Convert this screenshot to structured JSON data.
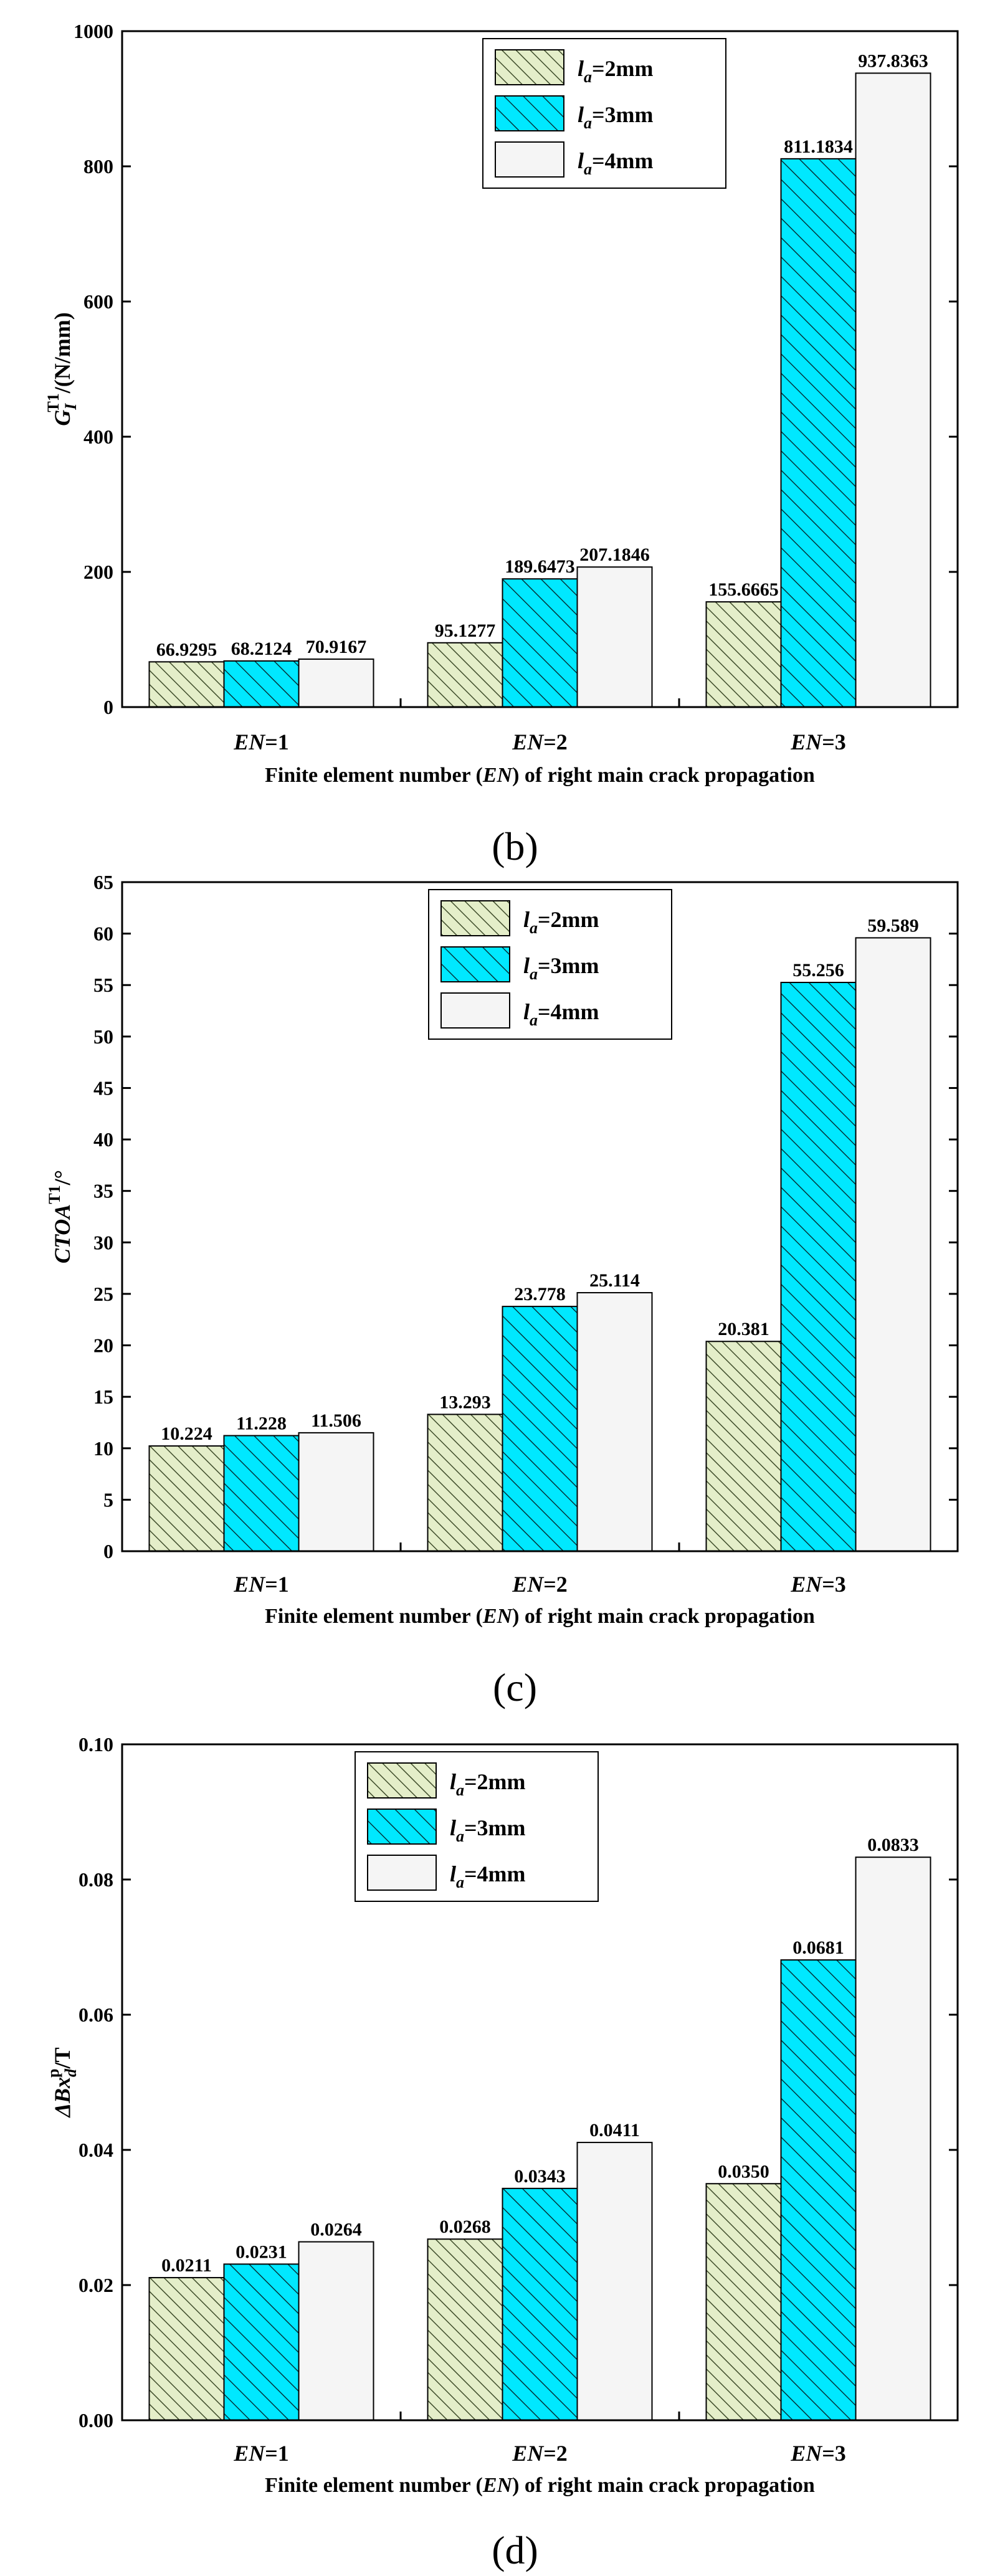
{
  "figure_type": "grouped bar charts",
  "chart_data": [
    {
      "type": "bar",
      "panel_label": "(b)",
      "title": "",
      "ylabel": "G_I^T1/(N/mm)",
      "ylabel_parts": {
        "sym": "G",
        "sub": "I",
        "sup": "T1",
        "rest": "/(N/mm)"
      },
      "xlabel": "Finite element number (EN) of right main crack propagation",
      "xlabel_parts": {
        "pre": "Finite element number (",
        "it": "EN",
        "post": ") of right main crack propagation"
      },
      "categories": [
        "EN=1",
        "EN=2",
        "EN=3"
      ],
      "ylim": [
        0,
        1000
      ],
      "yticks": [
        0,
        200,
        400,
        600,
        800,
        1000
      ],
      "ytick_labels": [
        "0",
        "200",
        "400",
        "600",
        "800",
        "1000"
      ],
      "series": [
        {
          "name": "la=2mm",
          "values": [
            66.9295,
            95.1277,
            155.6665
          ],
          "labels": [
            "66.9295",
            "95.1277",
            "155.6665"
          ]
        },
        {
          "name": "la=3mm",
          "values": [
            68.2124,
            189.6473,
            811.1834
          ],
          "labels": [
            "68.2124",
            "189.6473",
            "811.1834"
          ]
        },
        {
          "name": "la=4mm",
          "values": [
            70.9167,
            207.1846,
            937.8363
          ],
          "labels": [
            "70.9167",
            "207.1846",
            "937.8363"
          ]
        }
      ],
      "legend_position": "top-center"
    },
    {
      "type": "bar",
      "panel_label": "(c)",
      "title": "",
      "ylabel": "CTOA^T1/°",
      "ylabel_parts": {
        "sym": "CTOA",
        "sup": "T1",
        "rest": "/°"
      },
      "xlabel": "Finite element number (EN) of right main crack propagation",
      "xlabel_parts": {
        "pre": "Finite element number (",
        "it": "EN",
        "post": ") of right main crack propagation"
      },
      "categories": [
        "EN=1",
        "EN=2",
        "EN=3"
      ],
      "ylim": [
        0,
        65
      ],
      "yticks": [
        0,
        5,
        10,
        15,
        20,
        25,
        30,
        35,
        40,
        45,
        50,
        55,
        60,
        65
      ],
      "ytick_labels": [
        "0",
        "5",
        "10",
        "15",
        "20",
        "25",
        "30",
        "35",
        "40",
        "45",
        "50",
        "55",
        "60",
        "65"
      ],
      "series": [
        {
          "name": "la=2mm",
          "values": [
            10.224,
            13.293,
            20.381
          ],
          "labels": [
            "10.224",
            "13.293",
            "20.381"
          ]
        },
        {
          "name": "la=3mm",
          "values": [
            11.228,
            23.778,
            55.256
          ],
          "labels": [
            "11.228",
            "23.778",
            "55.256"
          ]
        },
        {
          "name": "la=4mm",
          "values": [
            11.506,
            25.114,
            59.589
          ],
          "labels": [
            "11.506",
            "25.114",
            "59.589"
          ]
        }
      ],
      "legend_position": "top-left"
    },
    {
      "type": "bar",
      "panel_label": "(d)",
      "title": "",
      "ylabel": "ΔBx_d^p/T",
      "ylabel_parts": {
        "sym": "ΔBx",
        "sub": "d",
        "sup": "p",
        "rest": "/T"
      },
      "xlabel": "Finite element number (EN) of right main crack propagation",
      "xlabel_parts": {
        "pre": "Finite element number (",
        "it": "EN",
        "post": ") of right main crack propagation"
      },
      "categories": [
        "EN=1",
        "EN=2",
        "EN=3"
      ],
      "ylim": [
        0,
        0.1
      ],
      "yticks": [
        0,
        0.02,
        0.04,
        0.06,
        0.08,
        0.1
      ],
      "ytick_labels": [
        "0.00",
        "0.02",
        "0.04",
        "0.06",
        "0.08",
        "0.10"
      ],
      "series": [
        {
          "name": "la=2mm",
          "values": [
            0.0211,
            0.0268,
            0.035
          ],
          "labels": [
            "0.0211",
            "0.0268",
            "0.0350"
          ]
        },
        {
          "name": "la=3mm",
          "values": [
            0.0231,
            0.0343,
            0.0681
          ],
          "labels": [
            "0.0231",
            "0.0343",
            "0.0681"
          ]
        },
        {
          "name": "la=4mm",
          "values": [
            0.0264,
            0.0411,
            0.0833
          ],
          "labels": [
            "0.0264",
            "0.0411",
            "0.0833"
          ]
        }
      ],
      "legend_position": "top-left"
    }
  ],
  "legend_entries": [
    {
      "pre": "l",
      "sub": "a",
      "post": "=2mm"
    },
    {
      "pre": "l",
      "sub": "a",
      "post": "=3mm"
    },
    {
      "pre": "l",
      "sub": "a",
      "post": "=4mm"
    }
  ],
  "colors": {
    "series1_fill": "#e4eec9",
    "series1_hatch": "#3f4d2b",
    "series2_fill": "#00e8ff",
    "series2_hatch": "#04343c",
    "series3_fill": "#f5f5f5",
    "axis": "#000000"
  }
}
